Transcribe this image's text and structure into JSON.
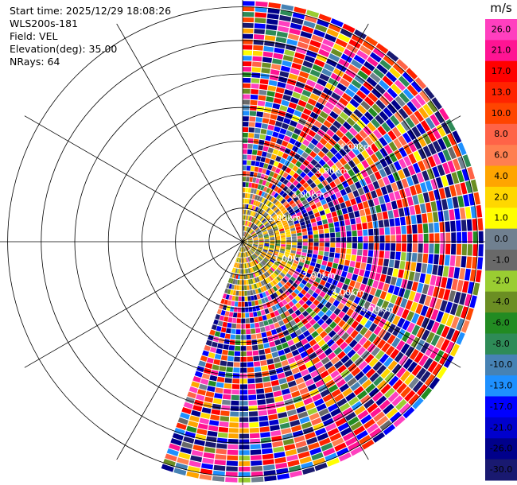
{
  "header": {
    "start_time": "Start time: 2025/12/29 18:08:26",
    "instrument": "WLS200s-181",
    "field": "Field: VEL",
    "elevation": "Elevation(deg): 35.00",
    "nrays": "NRays: 64"
  },
  "chart_data": {
    "type": "heatmap",
    "projection": "polar-ppi",
    "field": "VEL",
    "units": "m/s",
    "elevation_deg": 35.0,
    "n_rays": 64,
    "azimuth_coverage_deg": [
      0,
      200
    ],
    "max_range_km": 7.2,
    "range_ring_labels": [
      {
        "text": "1.00km"
      },
      {
        "text": "2.00km"
      },
      {
        "text": "3.00km"
      },
      {
        "text": "4.00km"
      }
    ],
    "near_field_description": "low speeds (-3 to 4 m/s) within ~1.5 km, noisy values beyond",
    "colorbar": {
      "label": "m/s",
      "ticks": [
        "26.0",
        "21.0",
        "17.0",
        "13.0",
        "10.0",
        "8.0",
        "6.0",
        "4.0",
        "2.0",
        "1.0",
        "0.0",
        "-1.0",
        "-2.0",
        "-4.0",
        "-6.0",
        "-8.0",
        "-10.0",
        "-13.0",
        "-17.0",
        "-21.0",
        "-26.0",
        "-30.0"
      ],
      "colors": [
        "#ff3fbf",
        "#ff1493",
        "#ff0000",
        "#ff2400",
        "#ff4500",
        "#ff6347",
        "#ff7f50",
        "#ffa500",
        "#ffd700",
        "#ffff00",
        "#708090",
        "#696969",
        "#9acd32",
        "#6b8e23",
        "#228b22",
        "#2e8b57",
        "#4682b4",
        "#1e90ff",
        "#0000ff",
        "#0000cd",
        "#00008b",
        "#191970"
      ]
    }
  }
}
